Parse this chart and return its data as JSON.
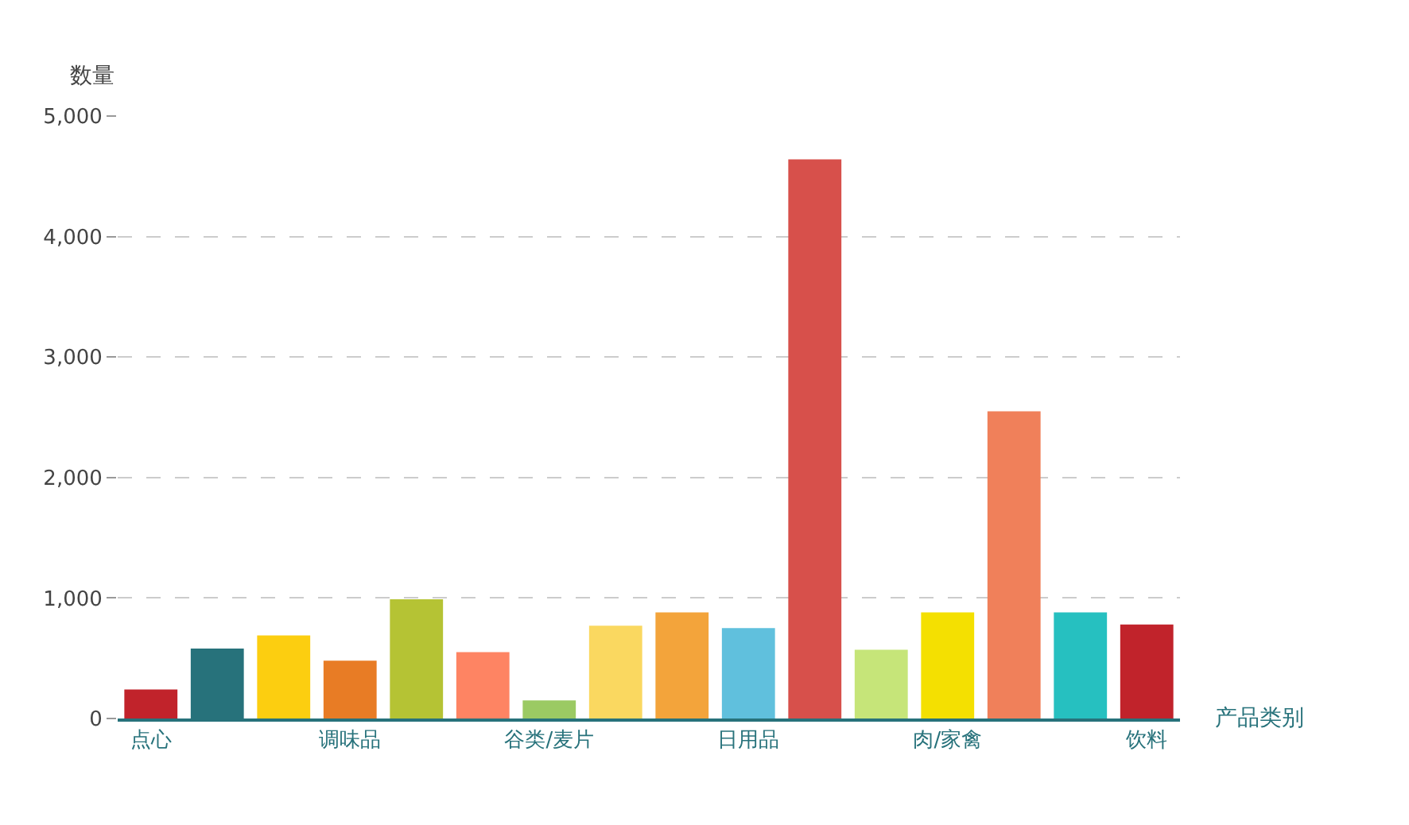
{
  "chart_data": {
    "type": "bar",
    "xlabel": "产品类别",
    "ylabel": "数量",
    "categories": [
      "点心",
      null,
      null,
      "调味品",
      null,
      null,
      "谷类/麦片",
      null,
      null,
      "日用品",
      null,
      null,
      "肉/家禽",
      null,
      null,
      "饮料"
    ],
    "values": [
      240,
      580,
      690,
      480,
      990,
      550,
      150,
      770,
      880,
      750,
      4640,
      570,
      880,
      2550,
      880,
      780
    ],
    "colors": [
      "#c1232b",
      "#27727b",
      "#fcce10",
      "#e87c25",
      "#b5c334",
      "#fe8463",
      "#9bca63",
      "#fad860",
      "#f3a43b",
      "#60c0dd",
      "#d7504b",
      "#c6e579",
      "#f4e001",
      "#f0805a",
      "#26c0c0",
      "#c1232b"
    ],
    "ylim": [
      0,
      5000
    ],
    "yticks": [
      {
        "value": 0,
        "label": "0"
      },
      {
        "value": 1000,
        "label": "1,000"
      },
      {
        "value": 2000,
        "label": "2,000"
      },
      {
        "value": 3000,
        "label": "3,000"
      },
      {
        "value": 4000,
        "label": "4,000"
      },
      {
        "value": 5000,
        "label": "5,000"
      }
    ],
    "grid": "y"
  }
}
